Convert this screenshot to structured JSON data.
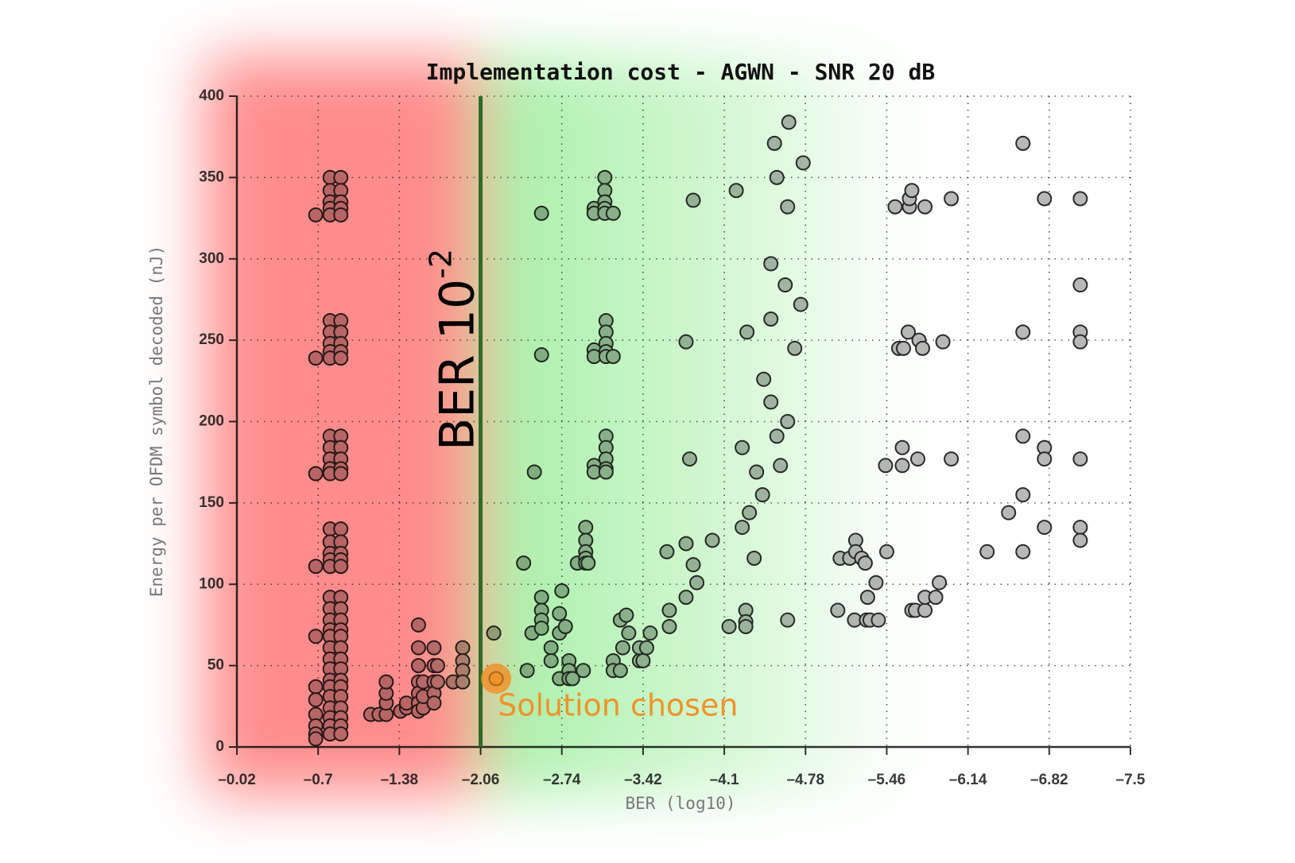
{
  "chart_data": {
    "type": "scatter",
    "title": "Implementation cost - AGWN - SNR 20 dB",
    "xlabel": "BER (log10)",
    "ylabel": "Energy per OFDM symbol decoded (nJ)",
    "color": "#b8b8b8",
    "grid": true,
    "xlim": [
      -0.02,
      -7.5
    ],
    "ylim": [
      0,
      400
    ],
    "xticks": [
      {
        "value": -0.02,
        "label": "–0.02"
      },
      {
        "value": -0.7,
        "label": "–0.7"
      },
      {
        "value": -1.38,
        "label": "–1.38"
      },
      {
        "value": -2.06,
        "label": "–2.06"
      },
      {
        "value": -2.74,
        "label": "–2.74"
      },
      {
        "value": -3.42,
        "label": "–3.42"
      },
      {
        "value": -4.1,
        "label": "–4.1"
      },
      {
        "value": -4.78,
        "label": "–4.78"
      },
      {
        "value": -5.46,
        "label": "–5.46"
      },
      {
        "value": -6.14,
        "label": "–6.14"
      },
      {
        "value": -6.82,
        "label": "–6.82"
      },
      {
        "value": -7.5,
        "label": "–7.5"
      }
    ],
    "yticks": [
      0,
      50,
      100,
      150,
      200,
      250,
      300,
      350,
      400
    ],
    "x": [
      -0.68,
      -0.68,
      -0.68,
      -0.68,
      -0.68,
      -0.68,
      -0.68,
      -0.68,
      -0.68,
      -0.68,
      -0.68,
      -0.8,
      -0.8,
      -0.8,
      -0.8,
      -0.8,
      -0.8,
      -0.8,
      -0.8,
      -0.8,
      -0.8,
      -0.8,
      -0.8,
      -0.8,
      -0.8,
      -0.8,
      -0.8,
      -0.8,
      -0.8,
      -0.8,
      -0.8,
      -0.8,
      -0.8,
      -0.8,
      -0.8,
      -0.8,
      -0.8,
      -0.8,
      -0.8,
      -0.8,
      -0.8,
      -0.8,
      -0.8,
      -0.8,
      -0.8,
      -0.8,
      -0.89,
      -0.89,
      -0.89,
      -0.89,
      -0.89,
      -0.89,
      -0.89,
      -0.89,
      -0.89,
      -0.89,
      -0.89,
      -0.89,
      -0.89,
      -0.89,
      -0.89,
      -0.89,
      -0.89,
      -0.89,
      -0.89,
      -0.89,
      -0.89,
      -0.89,
      -0.89,
      -0.89,
      -0.89,
      -0.89,
      -0.89,
      -0.89,
      -0.89,
      -0.89,
      -0.89,
      -0.89,
      -0.89,
      -0.89,
      -0.89,
      -1.14,
      -1.21,
      -1.27,
      -1.27,
      -1.27,
      -1.27,
      -1.39,
      -1.44,
      -1.44,
      -1.54,
      -1.54,
      -1.54,
      -1.54,
      -1.54,
      -1.54,
      -1.54,
      -1.58,
      -1.58,
      -1.58,
      -1.67,
      -1.67,
      -1.67,
      -1.67,
      -1.67,
      -1.7,
      -1.7,
      -1.83,
      -1.91,
      -1.91,
      -1.91,
      -1.91,
      -2.17,
      -2.42,
      -2.45,
      -2.49,
      -2.51,
      -2.57,
      -2.57,
      -2.57,
      -2.57,
      -2.57,
      -2.57,
      -2.65,
      -2.65,
      -2.72,
      -2.72,
      -2.72,
      -2.74,
      -2.77,
      -2.8,
      -2.8,
      -2.8,
      -2.83,
      -2.87,
      -2.92,
      -2.94,
      -2.94,
      -2.94,
      -2.94,
      -2.94,
      -2.96,
      -3.01,
      -3.01,
      -3.01,
      -3.01,
      -3.01,
      -3.01,
      -3.1,
      -3.1,
      -3.1,
      -3.1,
      -3.1,
      -3.11,
      -3.11,
      -3.11,
      -3.11,
      -3.11,
      -3.11,
      -3.11,
      -3.11,
      -3.11,
      -3.11,
      -3.17,
      -3.17,
      -3.17,
      -3.17,
      -3.23,
      -3.23,
      -3.25,
      -3.28,
      -3.3,
      -3.39,
      -3.39,
      -3.42,
      -3.45,
      -3.48,
      -3.62,
      -3.64,
      -3.64,
      -3.78,
      -3.78,
      -3.78,
      -3.81,
      -3.84,
      -3.84,
      -3.87,
      -4.0,
      -4.14,
      -4.2,
      -4.25,
      -4.25,
      -4.28,
      -4.28,
      -4.28,
      -4.29,
      -4.31,
      -4.35,
      -4.37,
      -4.42,
      -4.43,
      -4.49,
      -4.49,
      -4.49,
      -4.52,
      -4.54,
      -4.54,
      -4.57,
      -4.61,
      -4.63,
      -4.63,
      -4.63,
      -4.64,
      -4.69,
      -4.74,
      -4.76,
      -5.05,
      -5.07,
      -5.15,
      -5.19,
      -5.2,
      -5.2,
      -5.25,
      -5.28,
      -5.29,
      -5.3,
      -5.32,
      -5.37,
      -5.39,
      -5.45,
      -5.46,
      -5.53,
      -5.56,
      -5.59,
      -5.59,
      -5.6,
      -5.64,
      -5.65,
      -5.65,
      -5.67,
      -5.67,
      -5.7,
      -5.72,
      -5.73,
      -5.76,
      -5.78,
      -5.78,
      -5.78,
      -5.87,
      -5.9,
      -5.93,
      -6.0,
      -6.0,
      -6.3,
      -6.48,
      -6.6,
      -6.6,
      -6.6,
      -6.6,
      -6.6,
      -6.78,
      -6.78,
      -6.78,
      -6.78,
      -7.08,
      -7.08,
      -7.08,
      -7.08,
      -7.08,
      -7.08,
      -7.08
    ],
    "values": [
      327,
      239,
      168,
      111,
      68,
      37,
      29,
      20,
      13,
      8,
      5,
      350,
      342,
      335,
      331,
      327,
      262,
      255,
      248,
      243,
      239,
      191,
      184,
      177,
      171,
      168,
      134,
      126,
      119,
      115,
      111,
      92,
      85,
      78,
      72,
      68,
      61,
      54,
      48,
      41,
      37,
      31,
      24,
      18,
      13,
      8,
      350,
      342,
      335,
      331,
      327,
      262,
      255,
      248,
      243,
      239,
      191,
      184,
      177,
      171,
      168,
      134,
      126,
      119,
      115,
      111,
      92,
      85,
      78,
      72,
      68,
      61,
      54,
      48,
      41,
      37,
      31,
      24,
      18,
      13,
      8,
      20,
      20,
      20,
      27,
      33,
      40,
      22,
      24,
      27,
      75,
      61,
      50,
      40,
      33,
      27,
      22,
      24,
      31,
      40,
      61,
      50,
      40,
      33,
      27,
      40,
      50,
      40,
      61,
      53,
      47,
      40,
      70,
      113,
      47,
      70,
      169,
      92,
      84,
      78,
      73,
      328,
      241,
      61,
      53,
      82,
      70,
      42,
      96,
      74,
      53,
      47,
      42,
      42,
      113,
      47,
      135,
      127,
      120,
      116,
      113,
      113,
      331,
      328,
      244,
      240,
      173,
      169,
      350,
      342,
      335,
      331,
      328,
      262,
      255,
      248,
      243,
      240,
      191,
      184,
      177,
      171,
      169,
      53,
      47,
      328,
      240,
      78,
      47,
      61,
      81,
      70,
      53,
      61,
      53,
      61,
      70,
      120,
      84,
      74,
      92,
      249,
      125,
      177,
      336,
      112,
      101,
      127,
      74,
      342,
      184,
      135,
      84,
      77,
      74,
      255,
      144,
      116,
      169,
      155,
      226,
      212,
      263,
      297,
      371,
      350,
      191,
      173,
      284,
      332,
      78,
      200,
      384,
      245,
      272,
      359,
      84,
      116,
      116,
      78,
      127,
      120,
      116,
      113,
      78,
      92,
      78,
      101,
      78,
      173,
      120,
      332,
      245,
      184,
      173,
      245,
      255,
      332,
      337,
      342,
      84,
      84,
      177,
      250,
      245,
      84,
      92,
      332,
      92,
      101,
      249,
      177,
      337,
      120,
      144,
      371,
      255,
      191,
      155,
      120,
      337,
      184,
      177,
      135,
      337,
      284,
      255,
      249,
      177,
      135,
      127
    ],
    "threshold": {
      "x": -2.06,
      "label": "BER 10",
      "label_sup": "-2",
      "color": "#2e6b2a"
    },
    "highlight": {
      "x": -2.19,
      "y": 42,
      "label": "Solution chosen",
      "color": "#f0922a"
    }
  }
}
